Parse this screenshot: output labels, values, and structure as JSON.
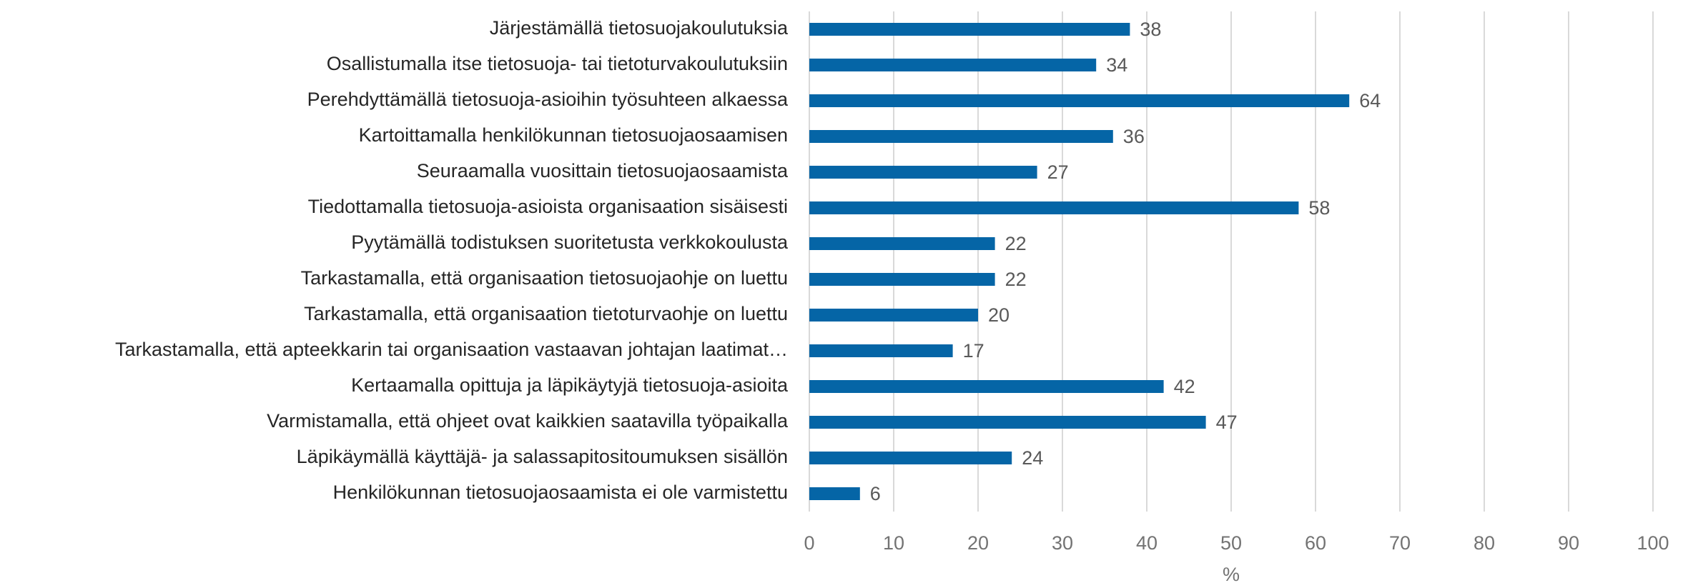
{
  "chart_data": {
    "type": "bar",
    "orientation": "horizontal",
    "categories": [
      "Järjestämällä tietosuojakoulutuksia",
      "Osallistumalla itse tietosuoja- tai tietoturvakoulutuksiin",
      "Perehdyttämällä tietosuoja-asioihin työsuhteen alkaessa",
      "Kartoittamalla henkilökunnan tietosuojaosaamisen",
      "Seuraamalla vuosittain tietosuojaosaamista",
      "Tiedottamalla tietosuoja-asioista organisaation sisäisesti",
      "Pyytämällä todistuksen suoritetusta verkkokoulusta",
      "Tarkastamalla, että organisaation tietosuojaohje on luettu",
      "Tarkastamalla, että organisaation tietoturvaohje on luettu",
      "Tarkastamalla, että apteekkarin tai organisaation vastaavan johtajan laatimat…",
      "Kertaamalla opittuja ja läpikäytyjä tietosuoja-asioita",
      "Varmistamalla, että ohjeet ovat kaikkien saatavilla työpaikalla",
      "Läpikäymällä käyttäjä- ja salassapitositoumuksen sisällön",
      "Henkilökunnan tietosuojaosaamista ei ole varmistettu"
    ],
    "values": [
      38,
      34,
      64,
      36,
      27,
      58,
      22,
      22,
      20,
      17,
      42,
      47,
      24,
      6
    ],
    "color": "#0565a6",
    "xlabel": "%",
    "xlim": [
      0,
      100
    ],
    "xticks": [
      0,
      10,
      20,
      30,
      40,
      50,
      60,
      70,
      80,
      90,
      100
    ],
    "grid": true
  }
}
